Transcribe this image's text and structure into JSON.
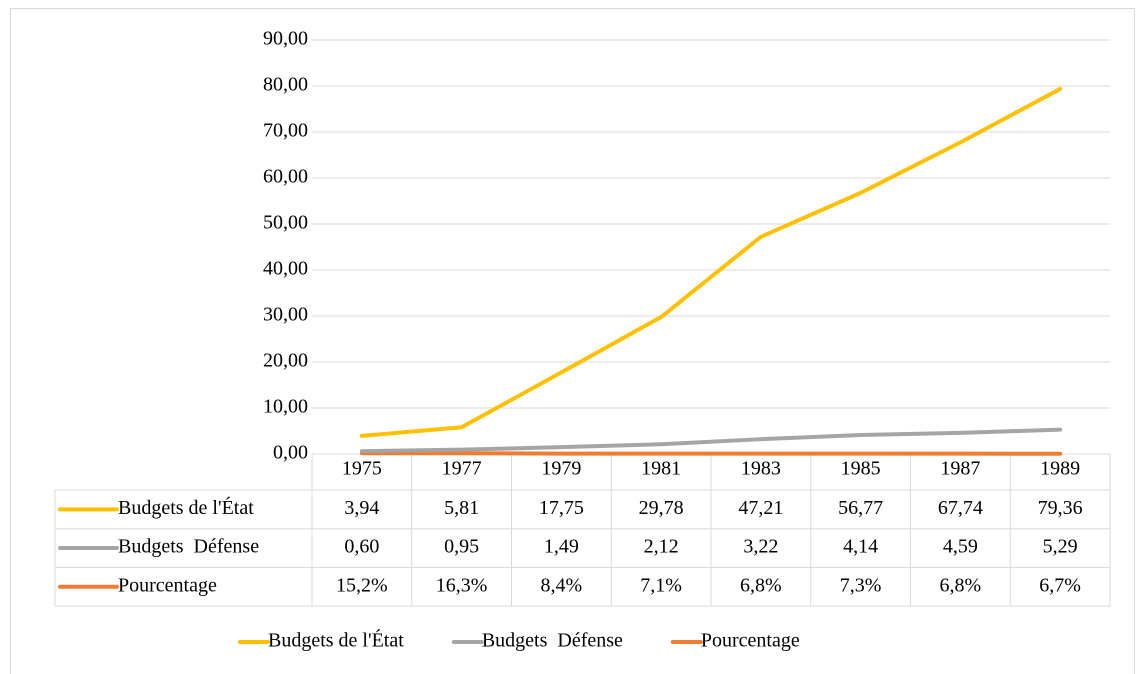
{
  "chart_data": {
    "type": "line",
    "categories": [
      "1975",
      "1977",
      "1979",
      "1981",
      "1983",
      "1985",
      "1987",
      "1989"
    ],
    "series": [
      {
        "name": "Budgets de l'État",
        "color": "#ffc000",
        "values": [
          3.94,
          5.81,
          17.75,
          29.78,
          47.21,
          56.77,
          67.74,
          79.36
        ],
        "value_labels": [
          "3,94",
          "5,81",
          "17,75",
          "29,78",
          "47,21",
          "56,77",
          "67,74",
          "79,36"
        ]
      },
      {
        "name": "Budgets  Défense",
        "color": "#a5a5a5",
        "values": [
          0.6,
          0.95,
          1.49,
          2.12,
          3.22,
          4.14,
          4.59,
          5.29
        ],
        "value_labels": [
          "0,60",
          "0,95",
          "1,49",
          "2,12",
          "3,22",
          "4,14",
          "4,59",
          "5,29"
        ]
      },
      {
        "name": "Pourcentage",
        "color": "#ed7d31",
        "values": [
          0.152,
          0.163,
          0.084,
          0.071,
          0.068,
          0.073,
          0.068,
          0.067
        ],
        "value_labels": [
          "15,2%",
          "16,3%",
          "8,4%",
          "7,1%",
          "6,8%",
          "7,3%",
          "6,8%",
          "6,7%"
        ]
      }
    ],
    "ylim": [
      0,
      90
    ],
    "yticks": [
      {
        "value": 0,
        "label": "0,00"
      },
      {
        "value": 10,
        "label": "10,00"
      },
      {
        "value": 20,
        "label": "20,00"
      },
      {
        "value": 30,
        "label": "30,00"
      },
      {
        "value": 40,
        "label": "40,00"
      },
      {
        "value": 50,
        "label": "50,00"
      },
      {
        "value": 60,
        "label": "60,00"
      },
      {
        "value": 70,
        "label": "70,00"
      },
      {
        "value": 80,
        "label": "80,00"
      },
      {
        "value": 90,
        "label": "90,00"
      }
    ],
    "grid": true,
    "legend": "bottom"
  }
}
